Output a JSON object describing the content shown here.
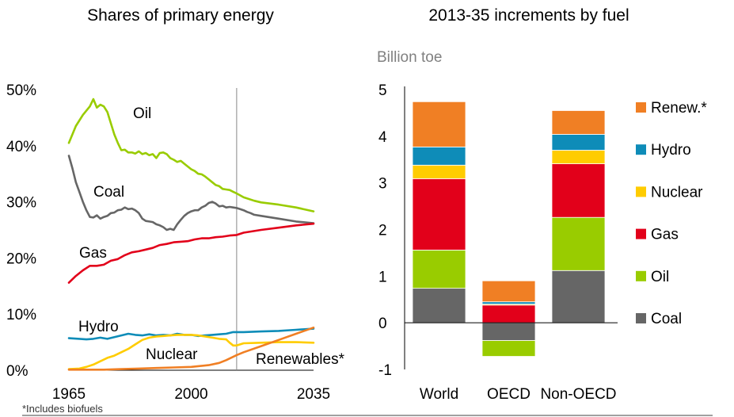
{
  "footnote": "*Includes biofuels",
  "chart_data": [
    {
      "type": "line",
      "title": "Shares of primary energy",
      "x_ticks": [
        "1965",
        "2000",
        "2035"
      ],
      "y_ticks": [
        "0%",
        "10%",
        "20%",
        "30%",
        "40%",
        "50%"
      ],
      "xlim": [
        1965,
        2035
      ],
      "ylim": [
        0,
        50
      ],
      "divider_year": 2013,
      "series": [
        {
          "name": "Oil",
          "label": "Oil",
          "color": "#99cc00",
          "x": [
            1965,
            1967,
            1969,
            1971,
            1972,
            1973,
            1974,
            1975,
            1976,
            1977,
            1978,
            1979,
            1980,
            1981,
            1982,
            1983,
            1984,
            1985,
            1986,
            1987,
            1988,
            1989,
            1990,
            1991,
            1992,
            1993,
            1994,
            1995,
            1996,
            1997,
            1998,
            1999,
            2000,
            2001,
            2002,
            2003,
            2004,
            2005,
            2006,
            2007,
            2008,
            2009,
            2010,
            2011,
            2012,
            2013,
            2015,
            2018,
            2020,
            2025,
            2030,
            2035
          ],
          "y": [
            40.5,
            43.5,
            45.5,
            47,
            48.3,
            46.8,
            47.3,
            47,
            46,
            44,
            42,
            40.5,
            39.2,
            39.3,
            38.8,
            38.8,
            38.6,
            39,
            38.5,
            38.7,
            38.3,
            38.5,
            37.8,
            38.7,
            38.8,
            38.5,
            37.8,
            37.5,
            37.1,
            37.3,
            36.8,
            36.3,
            35.8,
            35.5,
            35,
            34.9,
            34.5,
            34,
            33.5,
            33,
            32.8,
            32.3,
            32.2,
            32.1,
            31.8,
            31.5,
            30.8,
            30.2,
            29.9,
            29.5,
            29.0,
            28.3
          ]
        },
        {
          "name": "Coal",
          "label": "Coal",
          "color": "#666666",
          "x": [
            1965,
            1966,
            1967,
            1968,
            1969,
            1970,
            1971,
            1972,
            1973,
            1974,
            1975,
            1976,
            1977,
            1978,
            1979,
            1980,
            1981,
            1982,
            1983,
            1984,
            1985,
            1986,
            1987,
            1988,
            1989,
            1990,
            1991,
            1992,
            1993,
            1994,
            1995,
            1996,
            1997,
            1998,
            1999,
            2000,
            2001,
            2002,
            2003,
            2004,
            2005,
            2006,
            2007,
            2008,
            2009,
            2010,
            2011,
            2012,
            2013,
            2014,
            2015,
            2016,
            2017,
            2018,
            2020,
            2025,
            2030,
            2035
          ],
          "y": [
            38.2,
            36,
            33.5,
            31.8,
            30,
            28.5,
            27.3,
            27.2,
            27.6,
            27,
            27.3,
            27.5,
            28,
            28.1,
            28.5,
            28.6,
            29,
            28.7,
            28.8,
            28.5,
            28,
            27,
            26.6,
            26.5,
            26.4,
            26,
            25.8,
            25.5,
            25,
            25.2,
            25,
            26,
            26.8,
            27.5,
            28,
            28.3,
            28.5,
            28.5,
            29,
            29.3,
            29.8,
            30,
            29.7,
            29.2,
            29.3,
            29,
            29.1,
            29,
            28.9,
            28.7,
            28.5,
            28.2,
            28,
            27.7,
            27.5,
            27,
            26.5,
            26.2
          ]
        },
        {
          "name": "Gas",
          "label": "Gas",
          "color": "#e2001a",
          "x": [
            1965,
            1967,
            1969,
            1971,
            1973,
            1975,
            1977,
            1979,
            1981,
            1983,
            1985,
            1987,
            1989,
            1991,
            1993,
            1995,
            1997,
            1999,
            2001,
            2003,
            2005,
            2007,
            2009,
            2011,
            2013,
            2015,
            2020,
            2025,
            2030,
            2035
          ],
          "y": [
            15.6,
            16.8,
            17.8,
            18.6,
            18.6,
            18.8,
            19.5,
            19.8,
            20.5,
            21,
            21.2,
            21.5,
            21.8,
            22.3,
            22.5,
            22.8,
            22.9,
            23,
            23.3,
            23.5,
            23.5,
            23.7,
            23.8,
            24,
            24.1,
            24.5,
            25,
            25.4,
            25.8,
            26.1
          ]
        },
        {
          "name": "Hydro",
          "label": "Hydro",
          "color": "#0e8cb8",
          "x": [
            1965,
            1968,
            1970,
            1972,
            1974,
            1976,
            1978,
            1980,
            1982,
            1984,
            1986,
            1988,
            1990,
            1992,
            1994,
            1996,
            1998,
            2000,
            2002,
            2004,
            2006,
            2008,
            2010,
            2012,
            2013,
            2015,
            2020,
            2025,
            2030,
            2035
          ],
          "y": [
            5.7,
            5.6,
            5.5,
            5.6,
            5.8,
            5.6,
            5.9,
            6.2,
            6.5,
            6.3,
            6.2,
            6.4,
            6.2,
            6.3,
            6.2,
            6.5,
            6.3,
            6.3,
            6.1,
            6.2,
            6.3,
            6.4,
            6.5,
            6.8,
            6.8,
            6.8,
            6.9,
            7.0,
            7.2,
            7.4
          ]
        },
        {
          "name": "Nuclear",
          "label": "Nuclear",
          "color": "#ffcc00",
          "x": [
            1965,
            1968,
            1970,
            1972,
            1974,
            1976,
            1978,
            1980,
            1982,
            1984,
            1986,
            1988,
            1990,
            1992,
            1994,
            1996,
            1998,
            2000,
            2002,
            2004,
            2006,
            2008,
            2010,
            2011,
            2012,
            2013,
            2015,
            2020,
            2025,
            2030,
            2035
          ],
          "y": [
            0.2,
            0.3,
            0.6,
            1,
            1.6,
            2.2,
            2.6,
            3.2,
            3.8,
            4.6,
            5.4,
            5.8,
            6.0,
            6.1,
            6.2,
            6.3,
            6.3,
            6.3,
            6.2,
            6.0,
            5.8,
            5.6,
            5.5,
            4.9,
            4.4,
            4.4,
            4.8,
            4.9,
            5.0,
            5.0,
            4.9
          ]
        },
        {
          "name": "Renewables*",
          "label": "Renewables*",
          "color": "#f07f24",
          "x": [
            1965,
            1970,
            1975,
            1980,
            1985,
            1990,
            1995,
            2000,
            2005,
            2008,
            2010,
            2013,
            2015,
            2020,
            2025,
            2030,
            2035
          ],
          "y": [
            0.1,
            0.1,
            0.1,
            0.2,
            0.3,
            0.4,
            0.5,
            0.6,
            0.9,
            1.3,
            1.8,
            2.7,
            3.2,
            4.3,
            5.4,
            6.5,
            7.6
          ]
        }
      ]
    },
    {
      "type": "bar",
      "stacked": true,
      "title": "2013-35 increments by fuel",
      "unit": "Billion toe",
      "categories": [
        "World",
        "OECD",
        "Non-OECD"
      ],
      "y_ticks": [
        "5",
        "4",
        "3",
        "2",
        "1",
        "0",
        "-1"
      ],
      "ylim": [
        -1,
        5
      ],
      "series": [
        {
          "name": "Coal",
          "color": "#666666",
          "values": [
            0.74,
            -0.38,
            1.12
          ]
        },
        {
          "name": "Oil",
          "color": "#99cc00",
          "values": [
            0.82,
            -0.34,
            1.14
          ]
        },
        {
          "name": "Gas",
          "color": "#e2001a",
          "values": [
            1.53,
            0.38,
            1.15
          ]
        },
        {
          "name": "Nuclear",
          "color": "#ffcc00",
          "values": [
            0.29,
            0.02,
            0.29
          ]
        },
        {
          "name": "Hydro",
          "color": "#0e8cb8",
          "values": [
            0.39,
            0.05,
            0.34
          ]
        },
        {
          "name": "Renew.*",
          "color": "#f07f24",
          "values": [
            0.97,
            0.45,
            0.51
          ]
        }
      ]
    }
  ]
}
